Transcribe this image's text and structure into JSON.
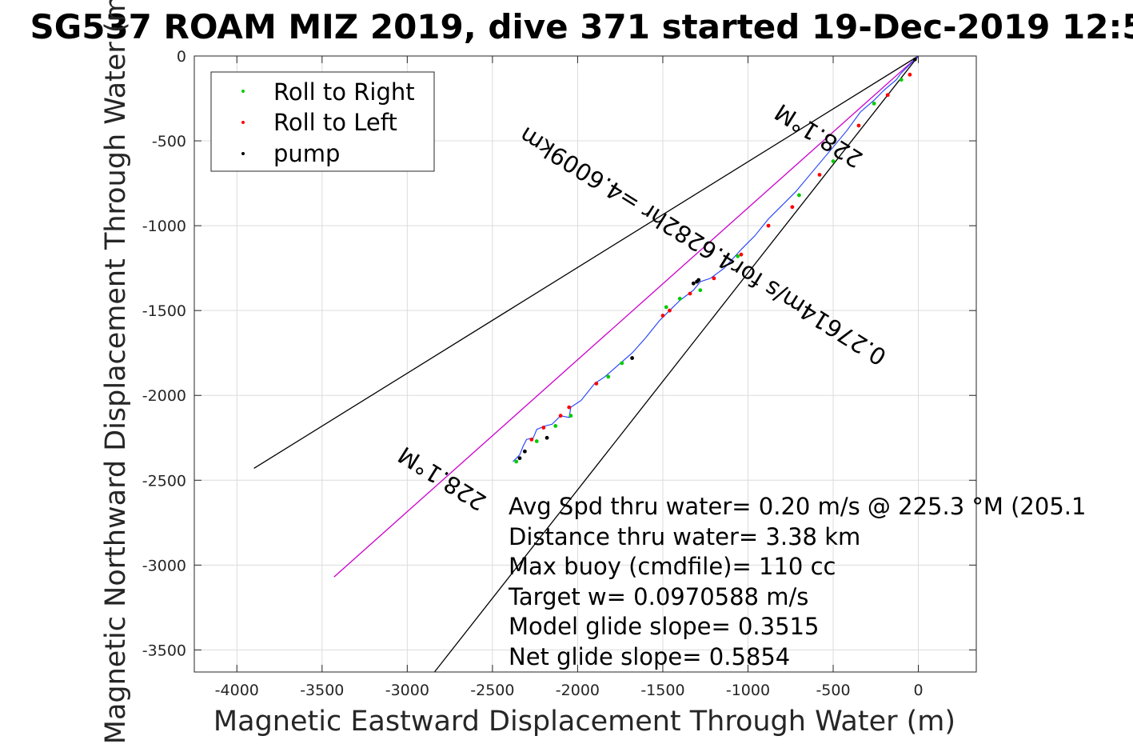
{
  "chart_data": {
    "type": "line",
    "title": "SG537 ROAM MIZ 2019, dive 371 started 19-Dec-2019 12:5",
    "xlabel": "Magnetic Eastward Displacement Through Water (m)",
    "ylabel": "Magnetic Northward Displacement Through Water (m)",
    "xlim": [
      -4250,
      340
    ],
    "ylim": [
      -3630,
      0
    ],
    "xticks": [
      -4000,
      -3500,
      -3000,
      -2500,
      -2000,
      -1500,
      -1000,
      -500,
      0
    ],
    "yticks": [
      0,
      -500,
      -1000,
      -1500,
      -2000,
      -2500,
      -3000,
      -3500
    ],
    "grid": true,
    "legend": {
      "placement": "top-left",
      "entries": [
        {
          "name": "Roll to Right",
          "color": "#00cc00"
        },
        {
          "name": "Roll to Left",
          "color": "#ff0000"
        },
        {
          "name": "pump",
          "color": "#000000"
        }
      ]
    },
    "lines": [
      {
        "x": [
          0,
          -3900
        ],
        "y": [
          0,
          -2430
        ],
        "color": "#000000"
      },
      {
        "x": [
          0,
          -2840
        ],
        "y": [
          0,
          -3630
        ],
        "color": "#000000"
      },
      {
        "x": [
          0,
          -3430
        ],
        "y": [
          0,
          -3070
        ],
        "color": "#cc00cc"
      }
    ],
    "series": [
      {
        "color": "#1f3fff",
        "x": [
          0,
          -60,
          -100,
          -130,
          -200,
          -260,
          -340,
          -420,
          -520,
          -620,
          -720,
          -800,
          -880,
          -960,
          -1040,
          -1140,
          -1220,
          -1280,
          -1320,
          -1400,
          -1460,
          -1520,
          -1600,
          -1680,
          -1760,
          -1840,
          -1900,
          -1980,
          -2040,
          -2050,
          -2100,
          -2150,
          -2190,
          -2240,
          -2260,
          -2300,
          -2320,
          -2340,
          -2380
        ],
        "y": [
          0,
          -60,
          -100,
          -140,
          -200,
          -260,
          -330,
          -440,
          -560,
          -680,
          -800,
          -880,
          -960,
          -1060,
          -1140,
          -1250,
          -1310,
          -1330,
          -1380,
          -1440,
          -1500,
          -1560,
          -1660,
          -1750,
          -1820,
          -1890,
          -1930,
          -2030,
          -2070,
          -2130,
          -2120,
          -2170,
          -2180,
          -2200,
          -2250,
          -2260,
          -2300,
          -2350,
          -2390
        ]
      }
    ],
    "roll_right_points": {
      "x": [
        -100,
        -260,
        -500,
        -700,
        -1060,
        -1280,
        -1400,
        -1480,
        -1740,
        -1820,
        -2040,
        -2130,
        -2240,
        -2360
      ],
      "y": [
        -140,
        -280,
        -620,
        -820,
        -1180,
        -1380,
        -1430,
        -1480,
        -1810,
        -1890,
        -2120,
        -2180,
        -2270,
        -2390
      ]
    },
    "roll_left_points": {
      "x": [
        -50,
        -180,
        -350,
        -580,
        -740,
        -880,
        -1040,
        -1200,
        -1340,
        -1460,
        -1500,
        -1890,
        -2050,
        -2100,
        -2200,
        -2270
      ],
      "y": [
        -110,
        -230,
        -410,
        -700,
        -890,
        -1000,
        -1170,
        -1310,
        -1400,
        -1500,
        -1530,
        -1930,
        -2070,
        -2120,
        -2190,
        -2260
      ]
    },
    "pump_points": {
      "x": [
        -20,
        -1290,
        -1300,
        -1320,
        -1680,
        -2180,
        -2310,
        -2340
      ],
      "y": [
        -20,
        -1320,
        -1330,
        -1340,
        -1780,
        -2250,
        -2330,
        -2370
      ]
    },
    "annotations": [
      {
        "text": "228.1°M",
        "x": -560,
        "y": -430,
        "rotate": 212
      },
      {
        "text": "0.27614m/s for4.6282hr =4.6009km",
        "x": -1240,
        "y": -1080,
        "rotate": 212
      },
      {
        "text": "228.1°M",
        "x": -2770,
        "y": -2450,
        "rotate": 212
      }
    ],
    "stats": [
      "Avg Spd thru water=  0.20 m/s @ 225.3 °M (205.1",
      "Distance thru water=  3.38 km",
      "Max buoy (cmdfile)= 110 cc",
      "Target w= 0.0970588 m/s",
      "Model glide slope= 0.3515",
      "Net glide slope= 0.5854"
    ]
  }
}
